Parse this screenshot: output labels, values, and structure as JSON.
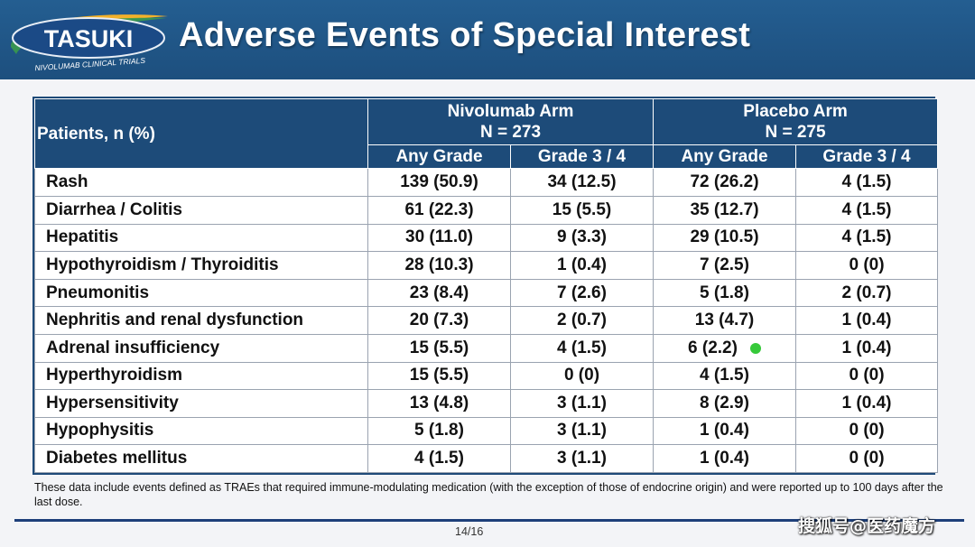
{
  "header": {
    "logo_text": "TASUKI",
    "logo_subtext": "NIVOLUMAB CLINICAL TRIALS",
    "title": "Adverse Events of Special Interest"
  },
  "table": {
    "corner_label": "Patients, n (%)",
    "arms": [
      {
        "name": "Nivolumab Arm",
        "n": "N = 273"
      },
      {
        "name": "Placebo Arm",
        "n": "N = 275"
      }
    ],
    "subheaders": [
      "Any Grade",
      "Grade 3 / 4",
      "Any Grade",
      "Grade 3 / 4"
    ],
    "rows": [
      {
        "label": "Rash",
        "values": [
          "139 (50.9)",
          "34 (12.5)",
          "72 (26.2)",
          "4 (1.5)"
        ]
      },
      {
        "label": "Diarrhea / Colitis",
        "values": [
          "61 (22.3)",
          "15 (5.5)",
          "35 (12.7)",
          "4 (1.5)"
        ]
      },
      {
        "label": "Hepatitis",
        "values": [
          "30 (11.0)",
          "9 (3.3)",
          "29 (10.5)",
          "4 (1.5)"
        ]
      },
      {
        "label": "Hypothyroidism / Thyroiditis",
        "values": [
          "28 (10.3)",
          "1 (0.4)",
          "7 (2.5)",
          "0 (0)"
        ]
      },
      {
        "label": "Pneumonitis",
        "values": [
          "23 (8.4)",
          "7 (2.6)",
          "5 (1.8)",
          "2 (0.7)"
        ]
      },
      {
        "label": "Nephritis and renal dysfunction",
        "values": [
          "20 (7.3)",
          "2 (0.7)",
          "13 (4.7)",
          "1 (0.4)"
        ]
      },
      {
        "label": "Adrenal insufficiency",
        "values": [
          "15 (5.5)",
          "4 (1.5)",
          "6 (2.2)",
          "1 (0.4)"
        ]
      },
      {
        "label": "Hyperthyroidism",
        "values": [
          "15 (5.5)",
          "0 (0)",
          "4 (1.5)",
          "0 (0)"
        ]
      },
      {
        "label": "Hypersensitivity",
        "values": [
          "13 (4.8)",
          "3 (1.1)",
          "8 (2.9)",
          "1 (0.4)"
        ]
      },
      {
        "label": "Hypophysitis",
        "values": [
          "5 (1.8)",
          "3 (1.1)",
          "1 (0.4)",
          "0 (0)"
        ]
      },
      {
        "label": "Diabetes mellitus",
        "values": [
          "4 (1.5)",
          "3 (1.1)",
          "1 (0.4)",
          "0 (0)"
        ]
      }
    ]
  },
  "footnote": "These data include events defined as TRAEs that required immune-modulating medication (with the exception of those of endocrine origin) and were reported up to 100 days after the last dose.",
  "page_number": "14/16",
  "watermark": "搜狐号@医药魔方",
  "colors": {
    "header_bg": "#1d4f7e",
    "table_header_bg": "#1d4b79",
    "pointer_dot": "#36c93a",
    "rule": "#1d3f7a"
  }
}
